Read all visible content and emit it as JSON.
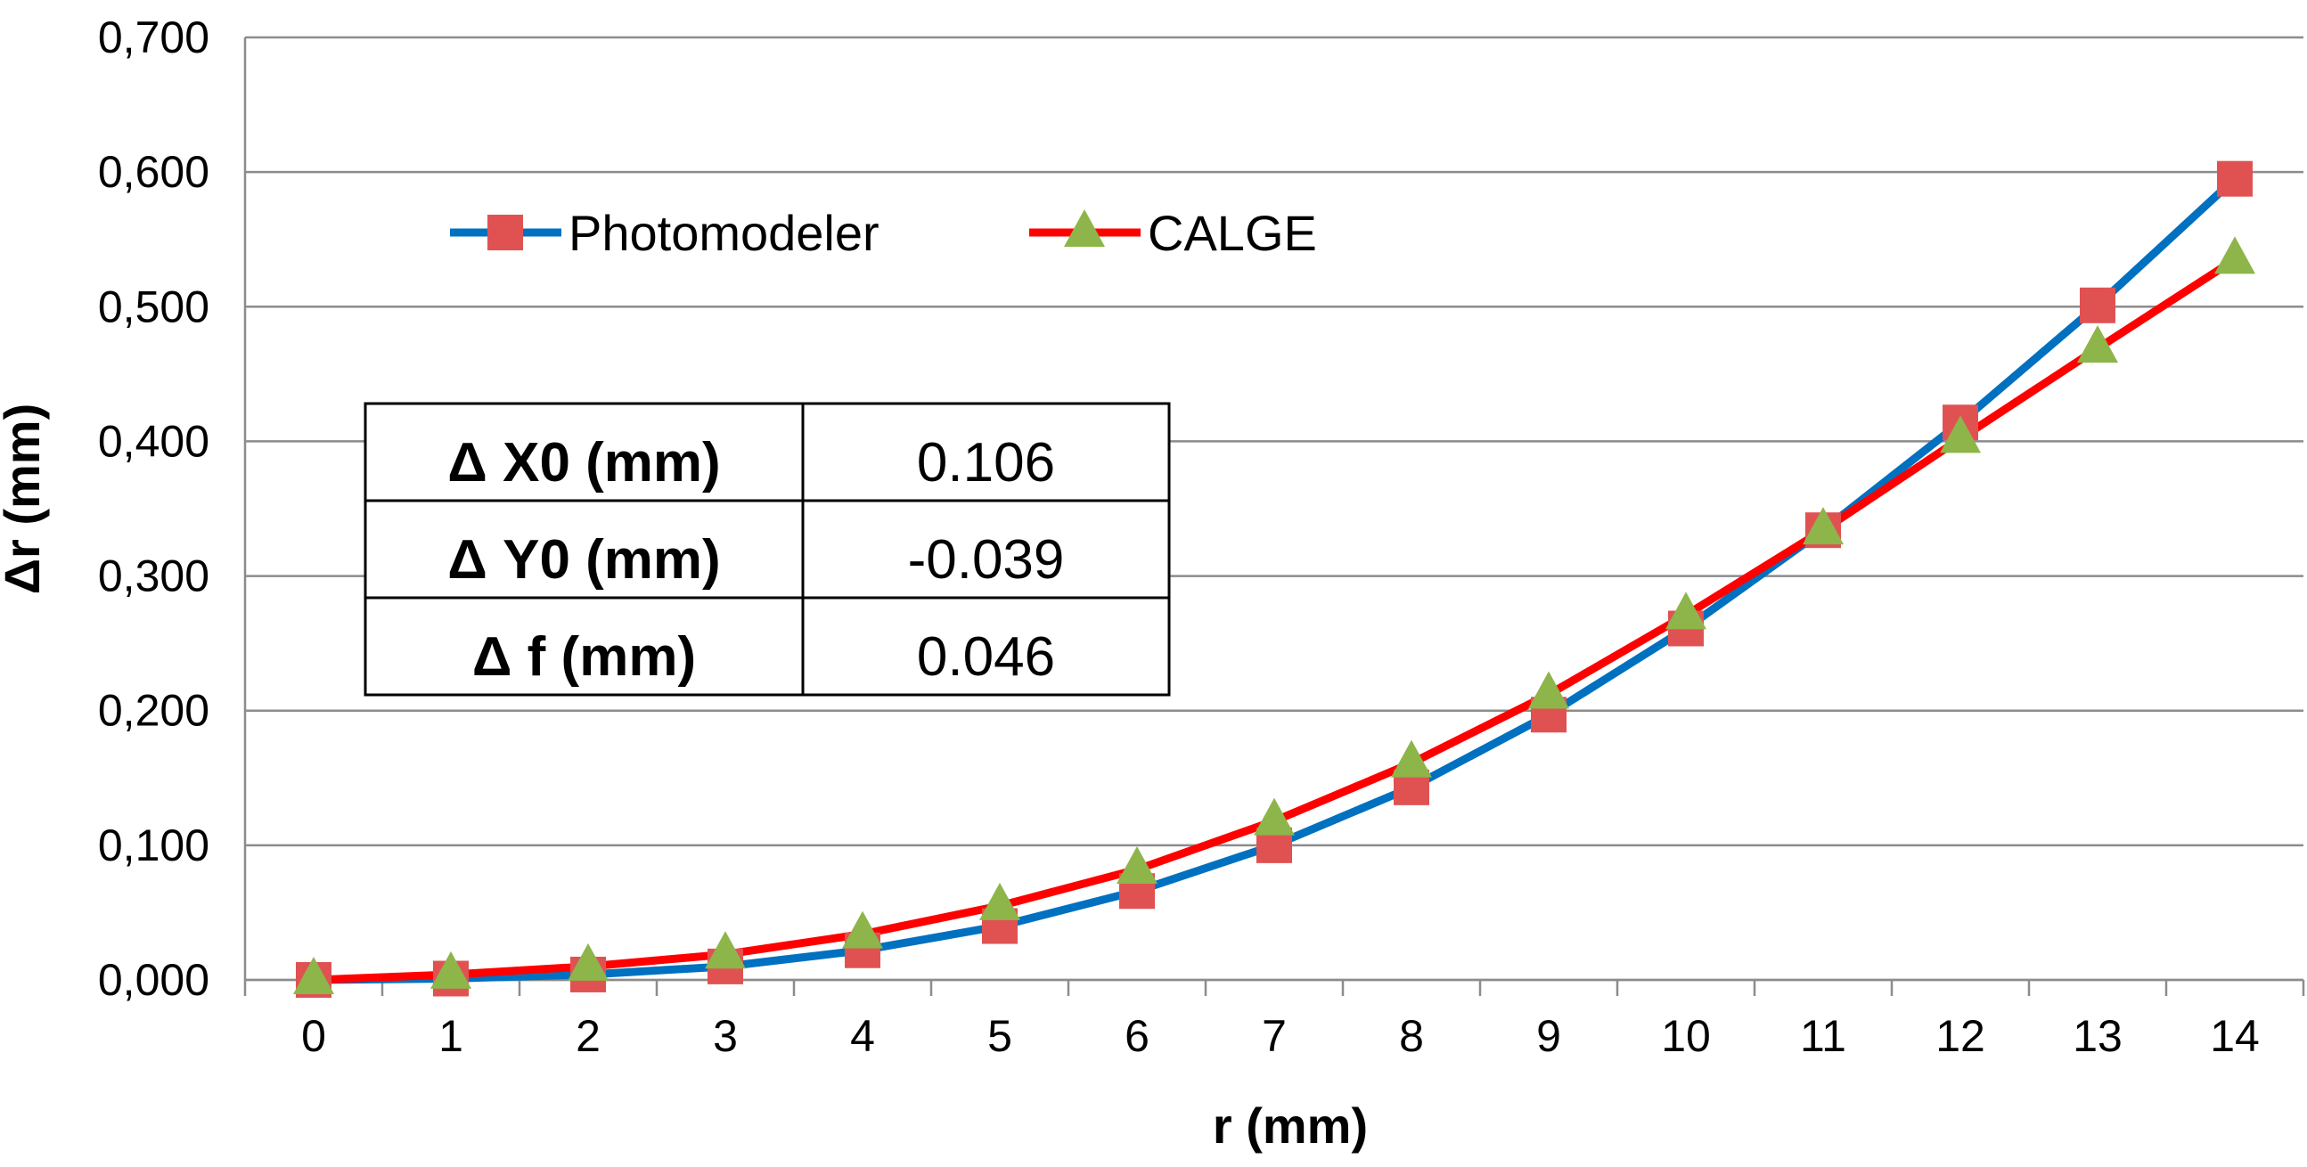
{
  "chart_data": {
    "type": "line",
    "title": "",
    "xlabel": "r (mm)",
    "ylabel": "Δr (mm)",
    "x": [
      0,
      1,
      2,
      3,
      4,
      5,
      6,
      7,
      8,
      9,
      10,
      11,
      12,
      13,
      14
    ],
    "xticks": [
      "0",
      "1",
      "2",
      "3",
      "4",
      "5",
      "6",
      "7",
      "8",
      "9",
      "10",
      "11",
      "12",
      "13",
      "14"
    ],
    "yticks": [
      "0,000",
      "0,100",
      "0,200",
      "0,300",
      "0,400",
      "0,500",
      "0,600",
      "0,700"
    ],
    "ylim": [
      0,
      0.7
    ],
    "grid": true,
    "legend_position": "top-left",
    "series": [
      {
        "name": "Photomodeler",
        "line_color": "#0070C0",
        "marker": "square",
        "marker_color": "#E05252",
        "values": [
          0.0,
          0.001,
          0.004,
          0.01,
          0.022,
          0.04,
          0.066,
          0.1,
          0.143,
          0.197,
          0.261,
          0.334,
          0.414,
          0.501,
          0.595
        ]
      },
      {
        "name": "CALGE",
        "line_color": "#FF0000",
        "marker": "triangle",
        "marker_color": "#8DB54A",
        "values": [
          0.0,
          0.004,
          0.01,
          0.019,
          0.034,
          0.055,
          0.082,
          0.118,
          0.161,
          0.212,
          0.271,
          0.334,
          0.402,
          0.469,
          0.535
        ]
      }
    ],
    "annotation_table": [
      {
        "label": "Δ X0 (mm)",
        "value": "0.106"
      },
      {
        "label": "Δ Y0 (mm)",
        "value": "-0.039"
      },
      {
        "label": "Δ f (mm)",
        "value": "0.046"
      }
    ]
  }
}
